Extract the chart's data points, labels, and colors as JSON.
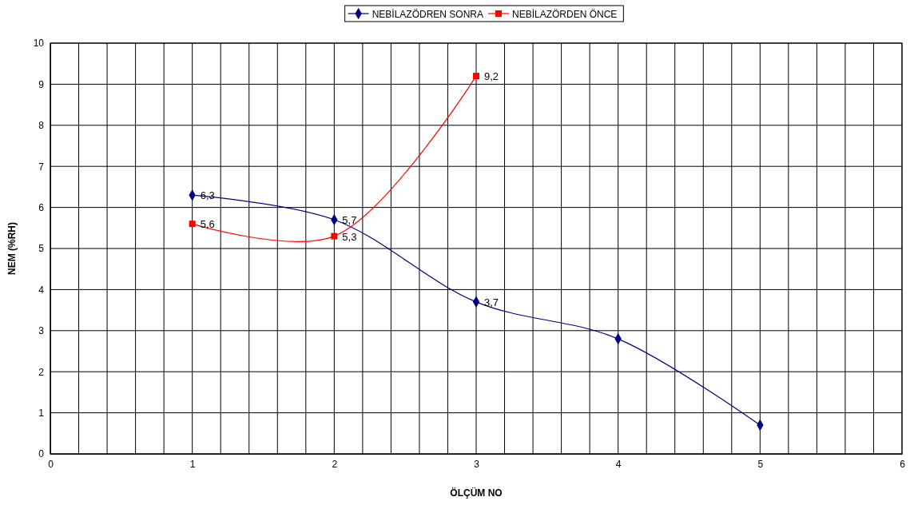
{
  "chart_data": {
    "type": "line",
    "xlabel": "ÖLÇÜM NO",
    "ylabel": "NEM (%RH)",
    "xlim": [
      0,
      6
    ],
    "xticks": [
      0,
      {
        "value": 0.2,
        "label": null
      },
      {
        "value": 0.4,
        "label": null
      },
      {
        "value": 0.6,
        "label": null
      },
      {
        "value": 0.8,
        "label": null
      },
      1,
      {
        "value": 1.2,
        "label": null
      },
      {
        "value": 1.4,
        "label": null
      },
      {
        "value": 1.6,
        "label": null
      },
      {
        "value": 1.8,
        "label": null
      },
      2,
      {
        "value": 2.2,
        "label": null
      },
      {
        "value": 2.4,
        "label": null
      },
      {
        "value": 2.6,
        "label": null
      },
      {
        "value": 2.8,
        "label": null
      },
      3,
      {
        "value": 3.2,
        "label": null
      },
      {
        "value": 3.4,
        "label": null
      },
      {
        "value": 3.6,
        "label": null
      },
      {
        "value": 3.8,
        "label": null
      },
      4,
      {
        "value": 4.2,
        "label": null
      },
      {
        "value": 4.4,
        "label": null
      },
      {
        "value": 4.6,
        "label": null
      },
      {
        "value": 4.8,
        "label": null
      },
      5,
      {
        "value": 5.2,
        "label": null
      },
      {
        "value": 5.4,
        "label": null
      },
      {
        "value": 5.6,
        "label": null
      },
      {
        "value": 5.8,
        "label": null
      },
      6
    ],
    "ylim": [
      0,
      10
    ],
    "yticks": [
      0,
      1,
      2,
      3,
      4,
      5,
      6,
      7,
      8,
      9,
      10
    ],
    "grid": true,
    "legend": "top",
    "series": [
      {
        "name": "NEBİLAZÖDREN SONRA",
        "color": "#000080",
        "marker": "diamond",
        "x": [
          1,
          2,
          3,
          4,
          5
        ],
        "values": [
          6.3,
          5.7,
          3.7,
          2.8,
          0.7
        ],
        "value_labels": [
          "6,3",
          "5,7",
          "3,7",
          null,
          null
        ]
      },
      {
        "name": "NEBİLAZÖRDEN ÖNCE",
        "color": "#ff0000",
        "marker": "square",
        "x": [
          1,
          2,
          3
        ],
        "values": [
          5.6,
          5.3,
          9.2
        ],
        "value_labels": [
          "5,6",
          "5,3",
          "9,2"
        ]
      }
    ]
  }
}
